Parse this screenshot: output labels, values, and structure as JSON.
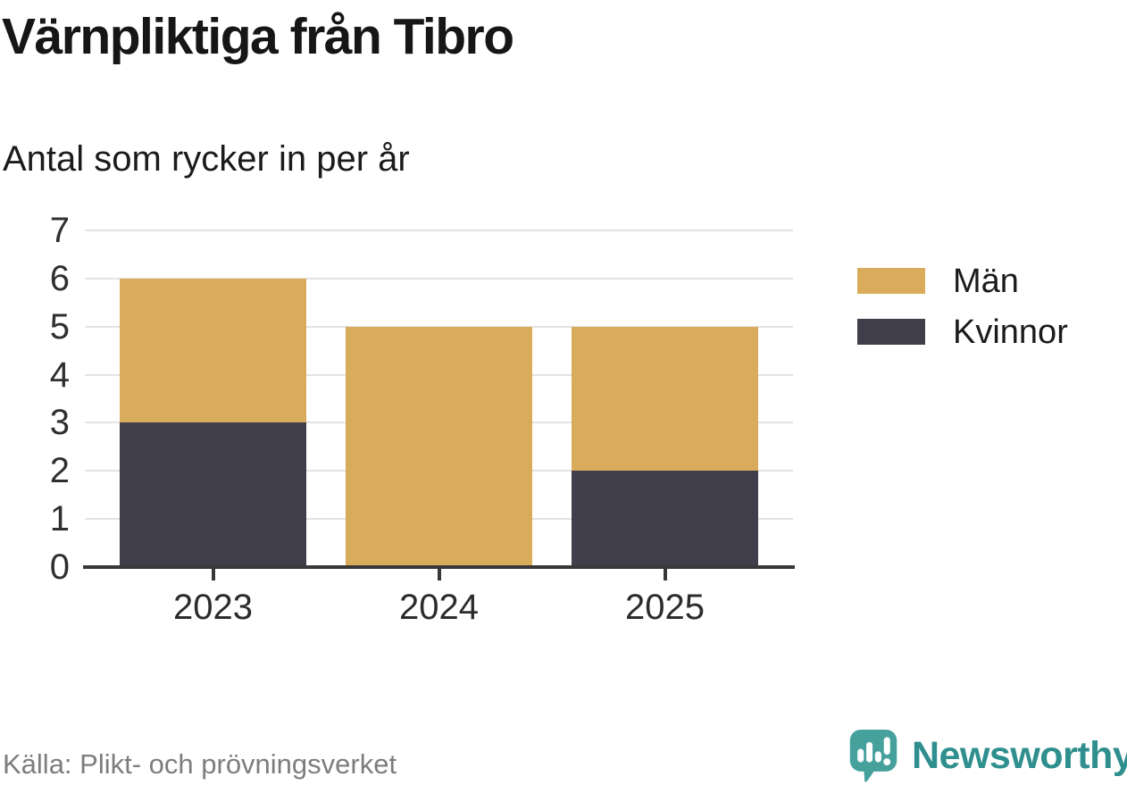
{
  "title": "Värnpliktiga från Tibro",
  "subtitle": "Antal som rycker in per år",
  "source": "Källa: Plikt- och prövningsverket",
  "brand": {
    "name": "Newsworthy",
    "icon": "bar-chart-speech-bubble-icon",
    "icon_color": "#46a19d",
    "text_color": "#2f8f8e"
  },
  "colors": {
    "man": "#d9ac5b",
    "kvinnor": "#413e4c",
    "gridline": "#e3e3e3",
    "axis": "#383838",
    "axis_label": "#2f2f2f",
    "source_text": "#7d7d7d"
  },
  "chart_data": {
    "type": "bar",
    "stacked": true,
    "title": "Värnpliktiga från Tibro",
    "subtitle": "Antal som rycker in per år",
    "categories": [
      "2023",
      "2024",
      "2025"
    ],
    "series": [
      {
        "name": "Kvinnor",
        "color": "#413e4c",
        "values": [
          3,
          0,
          2
        ]
      },
      {
        "name": "Män",
        "color": "#d9ac5b",
        "values": [
          3,
          5,
          3
        ]
      }
    ],
    "totals": [
      6,
      5,
      5
    ],
    "xlabel": "",
    "ylabel": "",
    "ylim": [
      0,
      7
    ],
    "yticks": [
      0,
      1,
      2,
      3,
      4,
      5,
      6,
      7
    ],
    "grid": "horizontal",
    "legend_position": "right",
    "legend_order": [
      "Män",
      "Kvinnor"
    ]
  },
  "legend": {
    "items": [
      {
        "label": "Män",
        "color": "#d9ac5b"
      },
      {
        "label": "Kvinnor",
        "color": "#413e4c"
      }
    ]
  }
}
